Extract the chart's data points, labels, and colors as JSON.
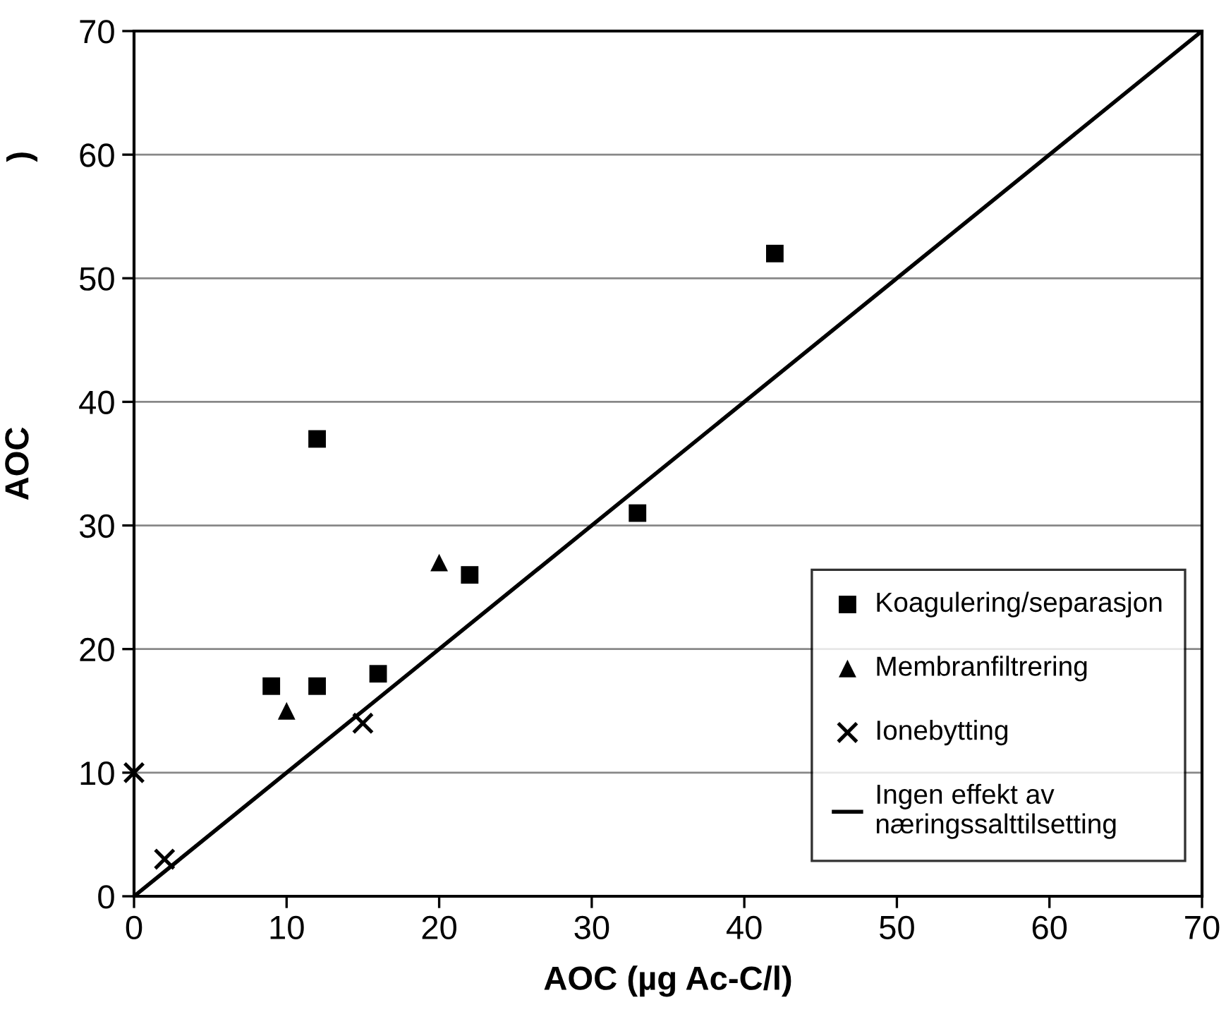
{
  "chart_data": {
    "type": "scatter",
    "xlabel": "AOC (µg Ac-C/l)",
    "ylabel": "AOC",
    "annotations": [
      ")"
    ],
    "xlim": [
      0,
      70
    ],
    "ylim": [
      0,
      70
    ],
    "xticks": [
      0,
      10,
      20,
      30,
      40,
      50,
      60,
      70
    ],
    "yticks": [
      0,
      10,
      20,
      30,
      40,
      50,
      60,
      70
    ],
    "grid": "y",
    "legend": "right",
    "series": [
      {
        "name": "Koagulering/separasjon",
        "marker": "square",
        "color": "#000000",
        "x": [
          42,
          12,
          22,
          33,
          9,
          12,
          16
        ],
        "values": [
          52,
          37,
          26,
          31,
          17,
          17,
          18
        ]
      },
      {
        "name": "Membranfiltrering",
        "marker": "triangle",
        "color": "#000000",
        "x": [
          20,
          10
        ],
        "values": [
          27,
          15
        ]
      },
      {
        "name": "Ionebytting",
        "marker": "cross",
        "color": "#000000",
        "x": [
          0,
          2,
          15
        ],
        "values": [
          10,
          3,
          14
        ]
      },
      {
        "name": "Ingen effekt av\nnæringssalttilsetting",
        "type": "line",
        "marker": "none",
        "line_style": "solid",
        "color": "#000000",
        "x": [
          0,
          70
        ],
        "values": [
          0,
          70
        ]
      }
    ]
  }
}
